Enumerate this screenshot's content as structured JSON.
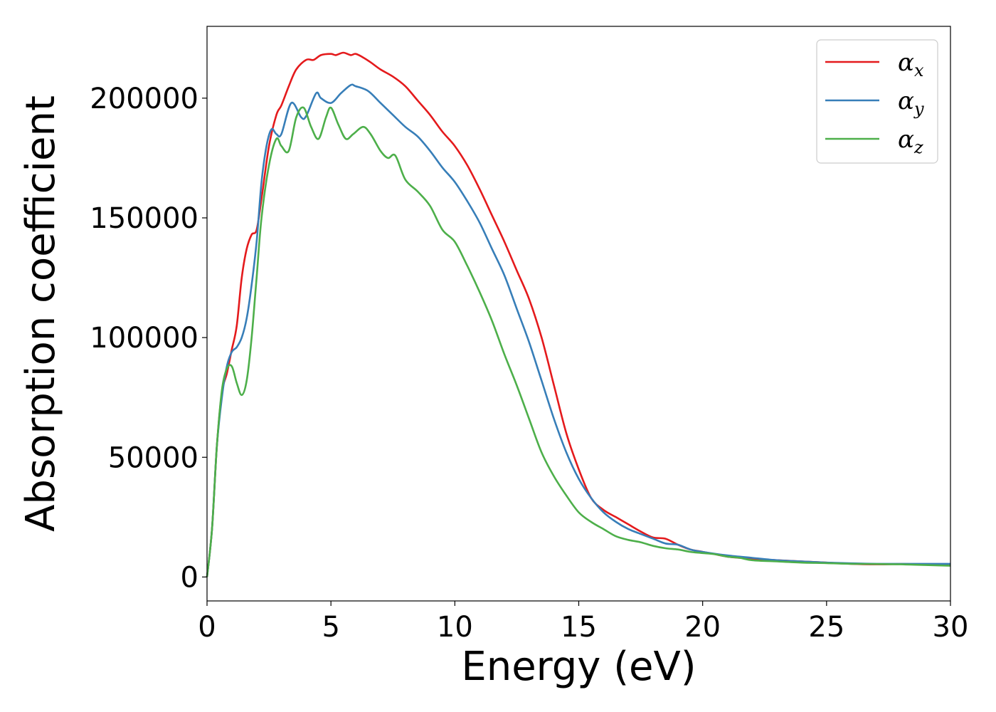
{
  "chart_data": {
    "type": "line",
    "title": "",
    "xlabel": "Energy (eV)",
    "ylabel": "Absorption coefficient",
    "xlim": [
      0,
      30
    ],
    "ylim": [
      -10000,
      230000
    ],
    "xticks": [
      0,
      5,
      10,
      15,
      20,
      25,
      30
    ],
    "xtick_labels": [
      "0",
      "5",
      "10",
      "15",
      "20",
      "25",
      "30"
    ],
    "yticks": [
      0,
      50000,
      100000,
      150000,
      200000
    ],
    "ytick_labels": [
      "0",
      "50000",
      "100000",
      "150000",
      "200000"
    ],
    "grid": false,
    "legend_position": "top-right",
    "series": [
      {
        "name": "α_x",
        "label_main": "α",
        "label_sub": "x",
        "color": "#e41a1c",
        "x": [
          0,
          0.2,
          0.4,
          0.6,
          0.8,
          1.0,
          1.2,
          1.4,
          1.6,
          1.8,
          2.0,
          2.2,
          2.5,
          2.8,
          3.0,
          3.3,
          3.6,
          4.0,
          4.3,
          4.6,
          5.0,
          5.2,
          5.5,
          5.8,
          6.0,
          6.3,
          6.6,
          7.0,
          7.5,
          8.0,
          8.5,
          9.0,
          9.5,
          10.0,
          10.5,
          11.0,
          11.5,
          12.0,
          12.5,
          13.0,
          13.5,
          14.0,
          14.5,
          15.0,
          15.5,
          16.0,
          16.5,
          17.0,
          17.5,
          18.0,
          18.5,
          19.0,
          19.5,
          20.0,
          20.5,
          21.0,
          21.5,
          22.0,
          23.0,
          24.0,
          25.0,
          26.0,
          27.0,
          28.0,
          29.0,
          30.0
        ],
        "y": [
          0,
          20000,
          55000,
          77000,
          85000,
          95000,
          105000,
          125000,
          137000,
          143000,
          145000,
          158000,
          180000,
          193000,
          197000,
          205000,
          212000,
          216000,
          216000,
          218000,
          218500,
          218000,
          219000,
          218000,
          218500,
          217000,
          215000,
          212000,
          209000,
          205000,
          199000,
          193000,
          186000,
          180000,
          172000,
          162000,
          151000,
          140000,
          128000,
          116000,
          100000,
          80000,
          60000,
          45000,
          33000,
          28000,
          25000,
          22000,
          19000,
          16500,
          16000,
          13500,
          11500,
          10500,
          9500,
          8500,
          8000,
          7500,
          7000,
          6500,
          6000,
          5500,
          5300,
          5400,
          5300,
          5200
        ]
      },
      {
        "name": "α_y",
        "label_main": "α",
        "label_sub": "y",
        "color": "#377eb8",
        "x": [
          0,
          0.2,
          0.4,
          0.6,
          0.8,
          1.0,
          1.2,
          1.4,
          1.6,
          1.8,
          2.0,
          2.2,
          2.4,
          2.6,
          2.8,
          3.0,
          3.4,
          3.8,
          4.0,
          4.4,
          4.6,
          5.0,
          5.4,
          5.8,
          6.0,
          6.5,
          7.0,
          7.5,
          8.0,
          8.5,
          9.0,
          9.5,
          10.0,
          10.5,
          11.0,
          11.5,
          12.0,
          12.5,
          13.0,
          13.5,
          14.0,
          14.5,
          15.0,
          15.5,
          16.0,
          16.5,
          17.0,
          17.5,
          18.0,
          18.5,
          19.0,
          19.5,
          20.0,
          21.0,
          22.0,
          23.0,
          24.0,
          25.0,
          26.0,
          27.0,
          28.0,
          29.0,
          30.0
        ],
        "y": [
          0,
          20000,
          55000,
          75000,
          88000,
          94000,
          96000,
          100000,
          108000,
          122000,
          140000,
          165000,
          180000,
          187000,
          185000,
          185000,
          198000,
          192000,
          192500,
          202000,
          200000,
          198000,
          202000,
          205500,
          205000,
          203000,
          198000,
          193000,
          188000,
          184000,
          178000,
          171000,
          165000,
          157000,
          148000,
          137000,
          126000,
          112000,
          98000,
          82000,
          66000,
          52000,
          41000,
          33000,
          27000,
          23000,
          20000,
          18000,
          16000,
          14000,
          13500,
          11500,
          10500,
          9000,
          8000,
          7000,
          6500,
          6000,
          5700,
          5500,
          5500,
          5500,
          5500
        ]
      },
      {
        "name": "α_z",
        "label_main": "α",
        "label_sub": "z",
        "color": "#4daf4a",
        "x": [
          0,
          0.2,
          0.4,
          0.6,
          0.8,
          1.0,
          1.2,
          1.4,
          1.6,
          1.8,
          2.0,
          2.2,
          2.5,
          2.8,
          3.0,
          3.3,
          3.6,
          3.9,
          4.2,
          4.5,
          4.8,
          5.0,
          5.3,
          5.6,
          5.9,
          6.3,
          6.6,
          7.0,
          7.3,
          7.6,
          8.0,
          8.5,
          9.0,
          9.5,
          10.0,
          10.5,
          11.0,
          11.5,
          12.0,
          12.5,
          13.0,
          13.5,
          14.0,
          14.5,
          15.0,
          15.5,
          16.0,
          16.5,
          17.0,
          17.5,
          18.0,
          18.5,
          19.0,
          19.5,
          20.0,
          20.5,
          21.0,
          21.5,
          22.0,
          23.0,
          24.0,
          25.0,
          26.0,
          27.0,
          28.0,
          29.0,
          30.0
        ],
        "y": [
          0,
          20000,
          55000,
          78000,
          87000,
          88000,
          81000,
          76000,
          82000,
          100000,
          125000,
          150000,
          172000,
          183000,
          180000,
          178000,
          192000,
          196000,
          188000,
          183000,
          192000,
          196000,
          189000,
          183000,
          185000,
          188000,
          185000,
          178000,
          175000,
          176000,
          166000,
          161000,
          155000,
          145000,
          140000,
          130000,
          119000,
          107000,
          93000,
          80000,
          66000,
          52000,
          42000,
          34000,
          27000,
          23000,
          20000,
          17000,
          15500,
          14500,
          13000,
          12000,
          11500,
          10500,
          10000,
          9500,
          8500,
          8000,
          7000,
          6500,
          6000,
          5800,
          5500,
          5400,
          5300,
          5000,
          4700
        ]
      }
    ]
  }
}
